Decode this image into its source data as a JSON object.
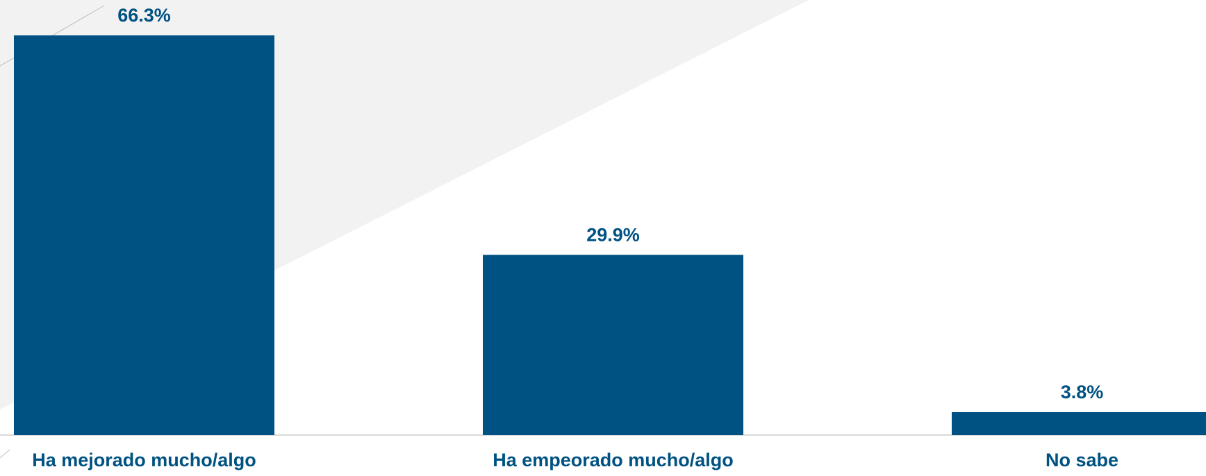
{
  "chart_data": {
    "type": "bar",
    "categories": [
      "Ha mejorado mucho/algo",
      "Ha empeorado mucho/algo",
      "No sabe"
    ],
    "values": [
      66.3,
      29.9,
      3.8
    ],
    "value_labels": [
      "66.3%",
      "29.9%",
      "3.8%"
    ],
    "color": "#005282"
  }
}
